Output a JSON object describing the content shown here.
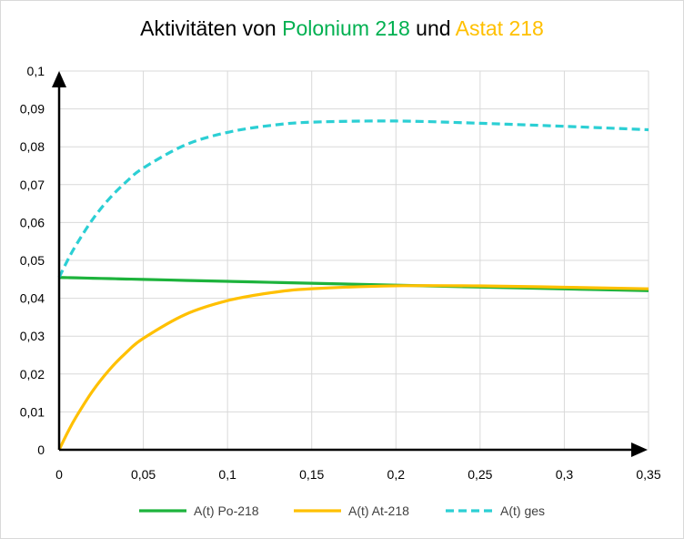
{
  "chart_data": {
    "type": "line",
    "title": {
      "prefix": "Aktivitäten von ",
      "part1": "Polonium 218",
      "middle": " und ",
      "part2": "Astat 218"
    },
    "title_colors": {
      "part1": "#00b050",
      "part2": "#ffc000"
    },
    "xlabel": "",
    "ylabel": "",
    "xlim": [
      0,
      0.35
    ],
    "ylim": [
      0,
      0.1
    ],
    "x_ticks": [
      "0",
      "0,05",
      "0,1",
      "0,15",
      "0,2",
      "0,25",
      "0,3",
      "0,35"
    ],
    "y_ticks": [
      "0",
      "0,01",
      "0,02",
      "0,03",
      "0,04",
      "0,05",
      "0,06",
      "0,07",
      "0,08",
      "0,09",
      "0,1"
    ],
    "grid": true,
    "legend_position": "bottom",
    "x": [
      0,
      0.005,
      0.01,
      0.02,
      0.03,
      0.04,
      0.05,
      0.075,
      0.1,
      0.125,
      0.15,
      0.2,
      0.25,
      0.3,
      0.35
    ],
    "series": [
      {
        "name": "A(t) Po-218",
        "color": "#1db33c",
        "dash": false,
        "values": [
          0.0455,
          0.04545,
          0.0454,
          0.04529,
          0.04519,
          0.04508,
          0.04498,
          0.04472,
          0.04447,
          0.04421,
          0.04396,
          0.04346,
          0.04296,
          0.04247,
          0.04199
        ]
      },
      {
        "name": "A(t) At-218",
        "color": "#ffc000",
        "dash": false,
        "values": [
          0,
          0.00454,
          0.00861,
          0.01558,
          0.02121,
          0.02574,
          0.02941,
          0.03573,
          0.03937,
          0.04141,
          0.04251,
          0.04329,
          0.04327,
          0.04291,
          0.0425
        ]
      },
      {
        "name": "A(t) ges",
        "color": "#2ccfd4",
        "dash": true,
        "values": [
          0.0455,
          0.05,
          0.054,
          0.0609,
          0.0664,
          0.0708,
          0.0744,
          0.0805,
          0.0838,
          0.0856,
          0.0865,
          0.0868,
          0.0862,
          0.0854,
          0.0845
        ]
      }
    ]
  }
}
